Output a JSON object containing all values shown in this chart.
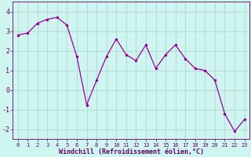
{
  "x": [
    0,
    1,
    2,
    3,
    4,
    5,
    6,
    7,
    8,
    9,
    10,
    11,
    12,
    13,
    14,
    15,
    16,
    17,
    18,
    19,
    20,
    21,
    22,
    23
  ],
  "y": [
    2.8,
    2.9,
    3.4,
    3.6,
    3.7,
    3.3,
    1.7,
    -0.75,
    0.5,
    1.7,
    2.6,
    1.8,
    1.5,
    2.3,
    1.1,
    1.8,
    2.3,
    1.6,
    1.1,
    1.0,
    0.5,
    -1.2,
    -2.1,
    -1.5
  ],
  "ylim": [
    -2.5,
    4.5
  ],
  "yticks": [
    -2,
    -1,
    0,
    1,
    2,
    3,
    4
  ],
  "line_color": "#990099",
  "marker": ".",
  "bg_color": "#cef5f0",
  "grid_color": "#b8ddd8",
  "xlabel": "Windchill (Refroidissement éolien,°C)",
  "xlabel_color": "#660066",
  "tick_color": "#660066",
  "figsize": [
    3.2,
    2.0
  ],
  "dpi": 100
}
